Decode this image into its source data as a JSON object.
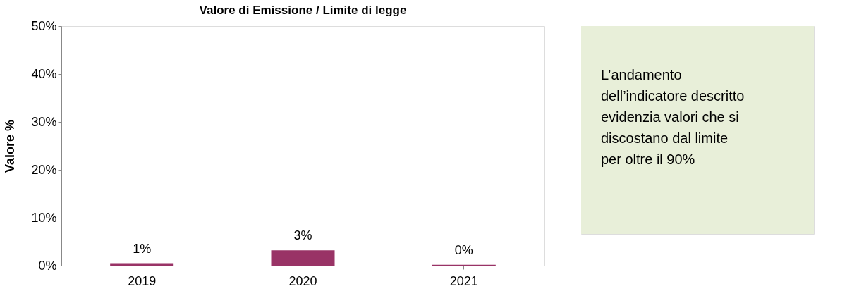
{
  "chart_data": {
    "type": "bar",
    "title": "Valore di Emissione / Limite di legge",
    "ylabel": "Valore %",
    "categories": [
      "2019",
      "2020",
      "2021"
    ],
    "values": [
      0.5,
      3.2,
      0.2
    ],
    "color": "#993366",
    "value_labels": [
      "1%",
      "3%",
      "0%"
    ],
    "ylim": [
      0,
      50
    ],
    "yticks": [
      {
        "value": 0,
        "label": "0%"
      },
      {
        "value": 10,
        "label": "10%"
      },
      {
        "value": 20,
        "label": "20%"
      },
      {
        "value": 30,
        "label": "30%"
      },
      {
        "value": 40,
        "label": "40%"
      },
      {
        "value": 50,
        "label": "50%"
      }
    ],
    "grid": false,
    "annotations": [
      "L’andamento\ndell’indicatore descritto\nevidenzia valori che si\ndiscostano dal limite\nper oltre il 90%"
    ]
  }
}
